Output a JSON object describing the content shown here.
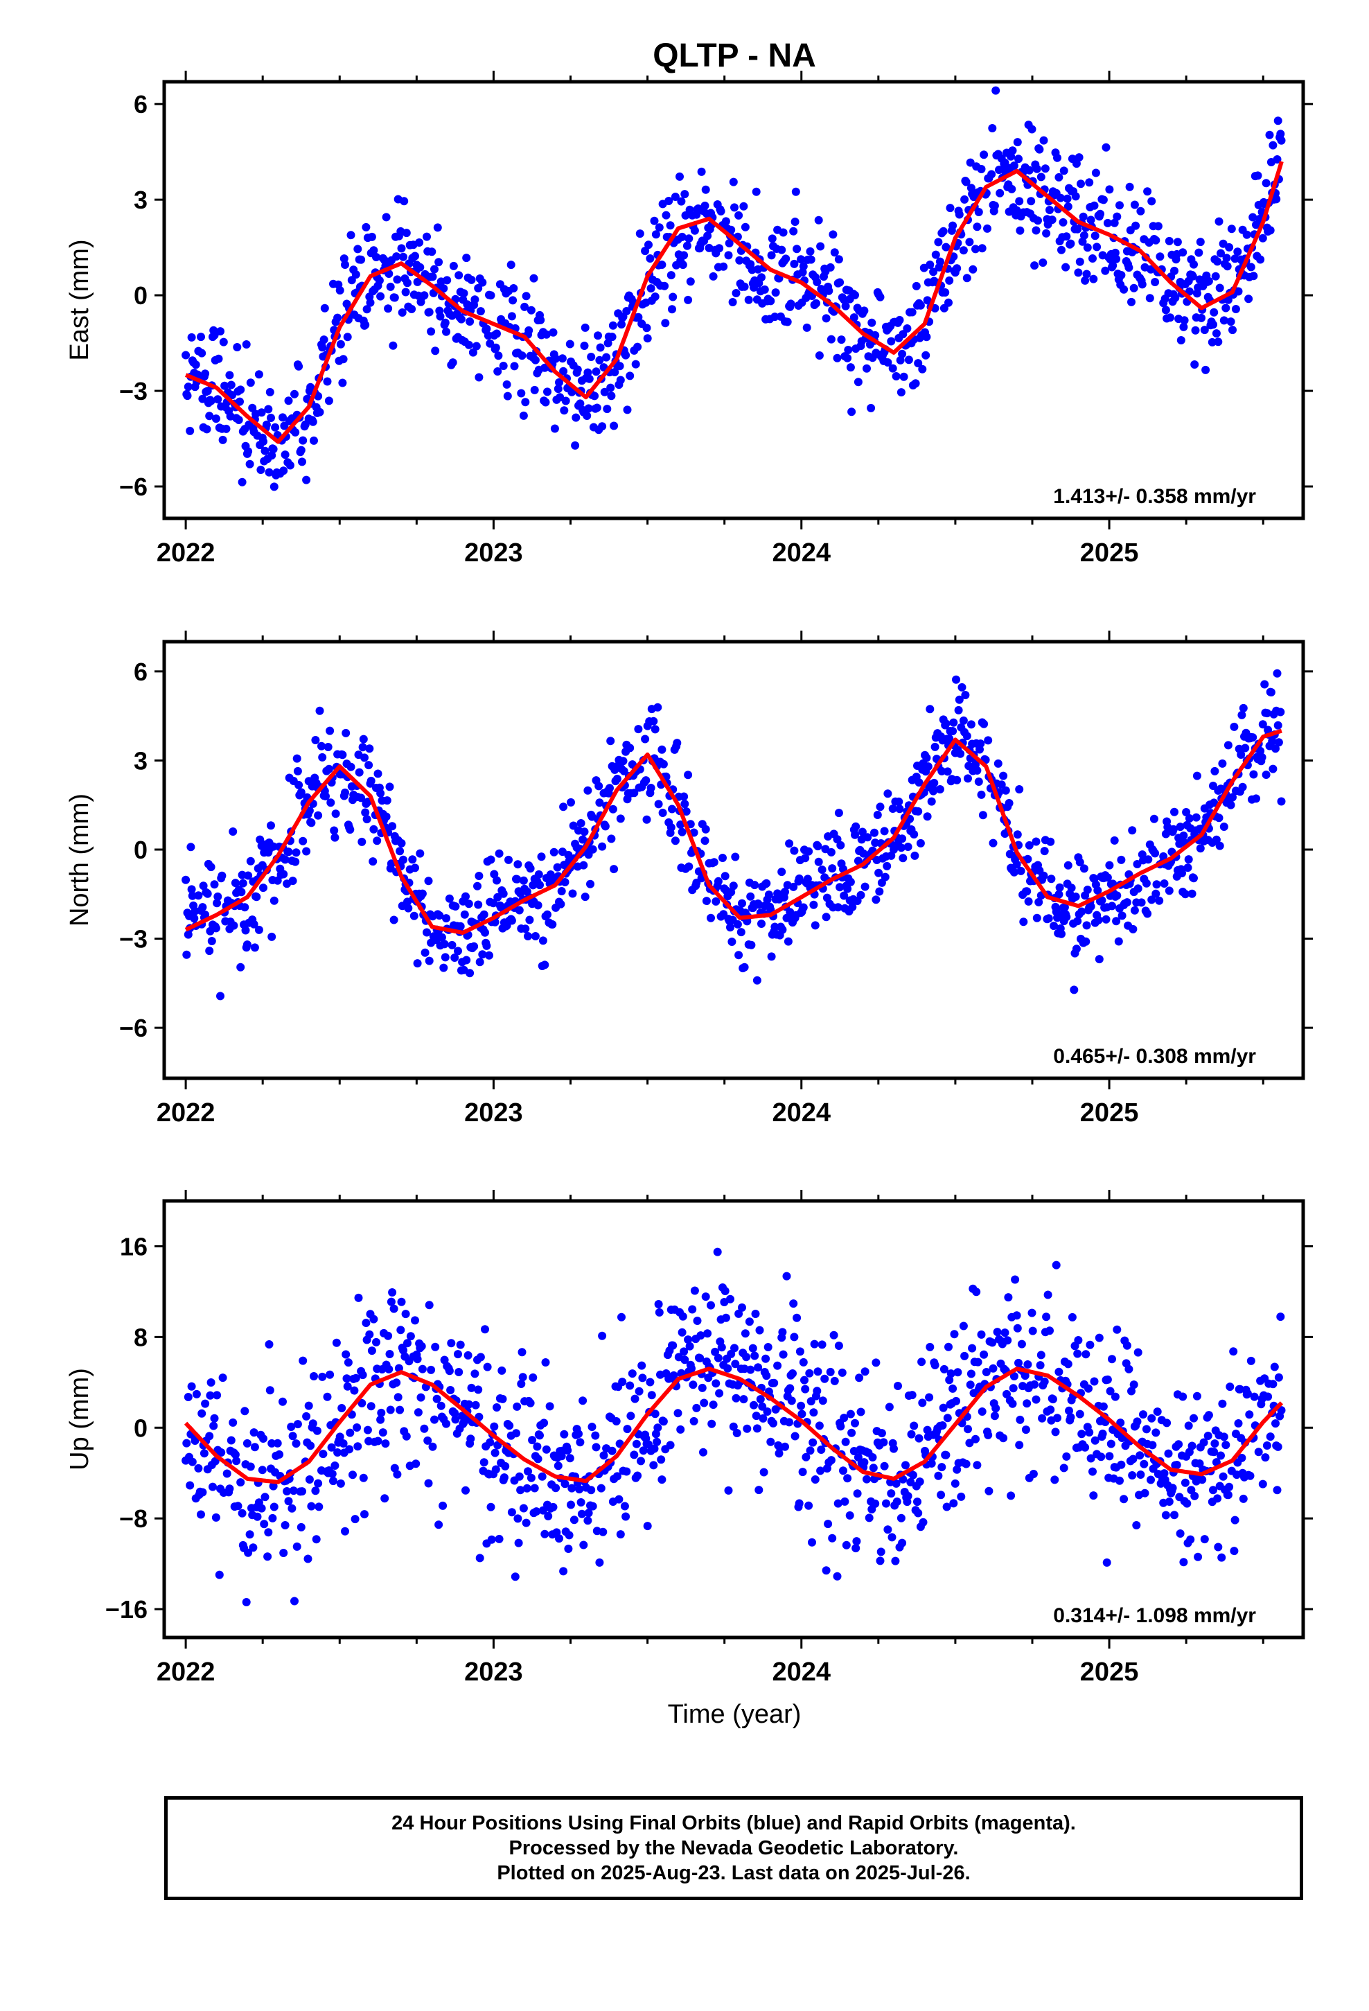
{
  "title": "QLTP - NA",
  "xlabel": "Time (year)",
  "colors": {
    "points": "#0000ff",
    "fit": "#ff0000",
    "axis": "#000000"
  },
  "footer": {
    "line1": "24 Hour Positions Using Final Orbits (blue) and Rapid Orbits (magenta).",
    "line2": "Processed by the Nevada Geodetic Laboratory.",
    "line3": "Plotted on 2025-Aug-23. Last data on 2025-Jul-26."
  },
  "chart_data": [
    {
      "type": "scatter",
      "ylabel": "East (mm)",
      "rate": "1.413+/- 0.358 mm/yr",
      "xlim": [
        2021.93,
        2025.63
      ],
      "ylim": [
        -7,
        6.7
      ],
      "xticks": [
        2022,
        2023,
        2024,
        2025
      ],
      "yticks": [
        -6,
        -3,
        0,
        3,
        6
      ],
      "noise": 0.9,
      "fit_x": [
        2022.0,
        2022.1,
        2022.2,
        2022.3,
        2022.4,
        2022.5,
        2022.6,
        2022.7,
        2022.8,
        2022.9,
        2023.0,
        2023.1,
        2023.2,
        2023.3,
        2023.4,
        2023.5,
        2023.6,
        2023.7,
        2023.8,
        2023.9,
        2024.0,
        2024.1,
        2024.2,
        2024.3,
        2024.4,
        2024.5,
        2024.6,
        2024.7,
        2024.8,
        2024.9,
        2025.0,
        2025.1,
        2025.2,
        2025.3,
        2025.4,
        2025.5,
        2025.56
      ],
      "fit_y": [
        -2.5,
        -2.9,
        -3.8,
        -4.6,
        -3.5,
        -1.0,
        0.6,
        1.0,
        0.3,
        -0.5,
        -0.9,
        -1.3,
        -2.4,
        -3.2,
        -2.0,
        0.6,
        2.1,
        2.4,
        1.6,
        0.8,
        0.4,
        -0.3,
        -1.2,
        -1.8,
        -0.9,
        1.8,
        3.4,
        3.9,
        3.1,
        2.3,
        1.9,
        1.4,
        0.4,
        -0.4,
        0.1,
        2.3,
        4.2
      ]
    },
    {
      "type": "scatter",
      "ylabel": "North (mm)",
      "rate": "0.465+/- 0.308 mm/yr",
      "xlim": [
        2021.93,
        2025.63
      ],
      "ylim": [
        -7.7,
        7
      ],
      "xticks": [
        2022,
        2023,
        2024,
        2025
      ],
      "yticks": [
        -6,
        -3,
        0,
        3,
        6
      ],
      "noise": 0.9,
      "fit_x": [
        2022.0,
        2022.1,
        2022.2,
        2022.3,
        2022.4,
        2022.5,
        2022.6,
        2022.7,
        2022.8,
        2022.9,
        2023.0,
        2023.1,
        2023.2,
        2023.3,
        2023.4,
        2023.5,
        2023.6,
        2023.7,
        2023.8,
        2023.9,
        2024.0,
        2024.1,
        2024.2,
        2024.3,
        2024.4,
        2024.5,
        2024.6,
        2024.7,
        2024.8,
        2024.9,
        2025.0,
        2025.1,
        2025.2,
        2025.3,
        2025.4,
        2025.5,
        2025.56
      ],
      "fit_y": [
        -2.7,
        -2.2,
        -1.6,
        -0.2,
        1.6,
        2.8,
        1.8,
        -0.9,
        -2.6,
        -2.8,
        -2.3,
        -1.7,
        -1.2,
        0.1,
        2.0,
        3.2,
        1.5,
        -1.2,
        -2.3,
        -2.2,
        -1.6,
        -1.0,
        -0.5,
        0.4,
        2.2,
        3.7,
        2.8,
        -0.1,
        -1.6,
        -1.9,
        -1.4,
        -0.8,
        -0.3,
        0.5,
        2.3,
        3.8,
        4.0
      ]
    },
    {
      "type": "scatter",
      "ylabel": "Up (mm)",
      "rate": "0.314+/- 1.098 mm/yr",
      "xlim": [
        2021.93,
        2025.63
      ],
      "ylim": [
        -18.5,
        20
      ],
      "xticks": [
        2022,
        2023,
        2024,
        2025
      ],
      "yticks": [
        -16,
        -8,
        0,
        8,
        16
      ],
      "noise": 4.2,
      "fit_x": [
        2022.0,
        2022.1,
        2022.2,
        2022.3,
        2022.4,
        2022.5,
        2022.6,
        2022.7,
        2022.8,
        2022.9,
        2023.0,
        2023.1,
        2023.2,
        2023.3,
        2023.4,
        2023.5,
        2023.6,
        2023.7,
        2023.8,
        2023.9,
        2024.0,
        2024.1,
        2024.2,
        2024.3,
        2024.4,
        2024.5,
        2024.6,
        2024.7,
        2024.8,
        2024.9,
        2025.0,
        2025.1,
        2025.2,
        2025.3,
        2025.4,
        2025.5,
        2025.56
      ],
      "fit_y": [
        0.4,
        -2.5,
        -4.5,
        -4.8,
        -3.0,
        0.5,
        3.8,
        4.9,
        3.8,
        1.6,
        -0.7,
        -2.8,
        -4.3,
        -4.7,
        -2.5,
        1.2,
        4.3,
        5.2,
        4.3,
        2.6,
        0.6,
        -1.8,
        -3.9,
        -4.5,
        -3.0,
        0.3,
        3.6,
        5.2,
        4.6,
        2.8,
        0.7,
        -1.7,
        -3.7,
        -4.1,
        -2.9,
        0.5,
        2.2
      ]
    }
  ]
}
